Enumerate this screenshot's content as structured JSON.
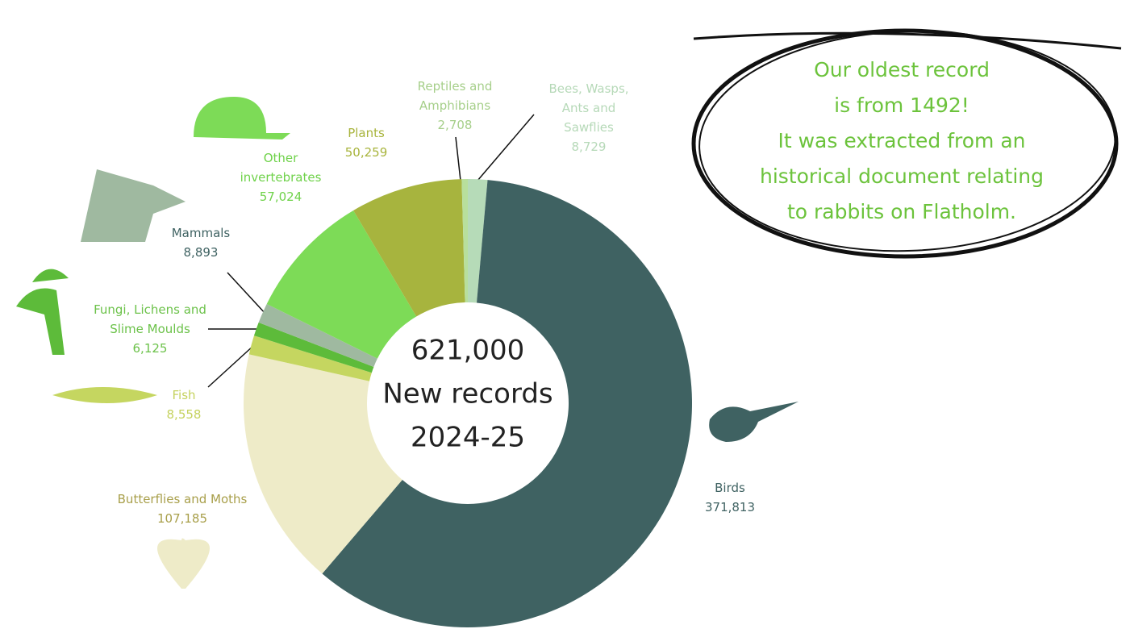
{
  "chart_data": {
    "type": "donut",
    "center_text": [
      "621,000",
      "New records",
      "2024-25"
    ],
    "categories": [
      "Bees, Wasps, Ants and Sawflies",
      "Birds",
      "Butterflies and Moths",
      "Fish",
      "Fungi, Lichens and Slime Moulds",
      "Mammals",
      "Other invertebrates",
      "Plants",
      "Reptiles and Amphibians"
    ],
    "values": [
      8729,
      371813,
      107185,
      8558,
      6125,
      8893,
      57024,
      50259,
      2708
    ],
    "value_labels": [
      "8,729",
      "371,813",
      "107,185",
      "8,558",
      "6,125",
      "8,893",
      "57,024",
      "50,259",
      "2,708"
    ],
    "colors": [
      "#b6dbb8",
      "#3f6262",
      "#eeebc8",
      "#c5d660",
      "#5dbb3a",
      "#9fb9a0",
      "#7ddb57",
      "#a7b43e",
      "#b8df9c"
    ],
    "annotation": [
      "Our oldest record",
      "is from 1492!",
      "It was extracted from an",
      "historical document relating",
      "to rabbits on Flatholm."
    ]
  }
}
